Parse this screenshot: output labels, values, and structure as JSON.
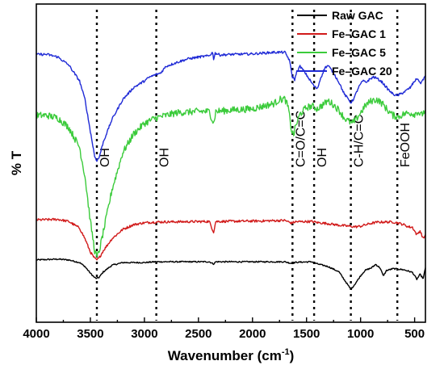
{
  "chart_data": {
    "type": "line",
    "title": "",
    "xlabel": "Wavenumber (cm⁻¹)",
    "ylabel": "% T",
    "xlim": [
      4000,
      400
    ],
    "x_ticks": [
      4000,
      3500,
      3000,
      2500,
      2000,
      1500,
      1000,
      500
    ],
    "y_ticks_shown": false,
    "grid": false,
    "legend": "top-right",
    "reference_lines": [
      {
        "x": 3440,
        "label": "OH"
      },
      {
        "x": 2890,
        "label": "OH"
      },
      {
        "x": 1630,
        "label": "C=O/C=C"
      },
      {
        "x": 1430,
        "label": "OH"
      },
      {
        "x": 1090,
        "label": "C-H/C=C"
      },
      {
        "x": 660,
        "label": "FeOOH"
      }
    ],
    "series": [
      {
        "name": "Raw GAC",
        "color": "#000000",
        "noise": 0.25,
        "points": [
          [
            4000,
            23.5
          ],
          [
            3800,
            23.8
          ],
          [
            3700,
            23.5
          ],
          [
            3600,
            22.5
          ],
          [
            3550,
            21.0
          ],
          [
            3500,
            18.5
          ],
          [
            3460,
            16.8
          ],
          [
            3440,
            16.5
          ],
          [
            3420,
            16.9
          ],
          [
            3380,
            19.0
          ],
          [
            3300,
            21.5
          ],
          [
            3200,
            22.5
          ],
          [
            3000,
            22.5
          ],
          [
            2900,
            22.8
          ],
          [
            2400,
            22.8
          ],
          [
            2360,
            22.0
          ],
          [
            2340,
            22.8
          ],
          [
            1900,
            22.8
          ],
          [
            1700,
            22.8
          ],
          [
            1640,
            22.2
          ],
          [
            1600,
            22.6
          ],
          [
            1450,
            22.8
          ],
          [
            1400,
            22.0
          ],
          [
            1300,
            21.0
          ],
          [
            1200,
            19.0
          ],
          [
            1150,
            16.0
          ],
          [
            1100,
            13.0
          ],
          [
            1085,
            12.6
          ],
          [
            1050,
            14.5
          ],
          [
            1000,
            17.5
          ],
          [
            960,
            19.5
          ],
          [
            900,
            20.5
          ],
          [
            860,
            21.8
          ],
          [
            820,
            20.5
          ],
          [
            790,
            17.5
          ],
          [
            760,
            19.5
          ],
          [
            700,
            20.2
          ],
          [
            640,
            20.0
          ],
          [
            600,
            19.8
          ],
          [
            560,
            19.3
          ],
          [
            520,
            18.8
          ],
          [
            480,
            16.2
          ],
          [
            450,
            18.0
          ],
          [
            420,
            16.5
          ],
          [
            400,
            20.5
          ]
        ]
      },
      {
        "name": "Fe–GAC 1",
        "color": "#d11a1a",
        "noise": 0.45,
        "points": [
          [
            4000,
            38.6
          ],
          [
            3800,
            38.8
          ],
          [
            3700,
            38.0
          ],
          [
            3600,
            35.5
          ],
          [
            3550,
            31.5
          ],
          [
            3500,
            26.5
          ],
          [
            3460,
            24.0
          ],
          [
            3440,
            23.5
          ],
          [
            3420,
            24.2
          ],
          [
            3380,
            27.0
          ],
          [
            3300,
            31.5
          ],
          [
            3200,
            35.0
          ],
          [
            3100,
            36.8
          ],
          [
            3000,
            37.5
          ],
          [
            2900,
            37.8
          ],
          [
            2400,
            38.0
          ],
          [
            2360,
            34.0
          ],
          [
            2340,
            38.0
          ],
          [
            1900,
            38.2
          ],
          [
            1700,
            38.4
          ],
          [
            1640,
            37.4
          ],
          [
            1600,
            37.9
          ],
          [
            1450,
            38.0
          ],
          [
            1400,
            37.6
          ],
          [
            1300,
            37.2
          ],
          [
            1200,
            36.6
          ],
          [
            1100,
            36.2
          ],
          [
            1050,
            36.0
          ],
          [
            1000,
            36.2
          ],
          [
            950,
            36.8
          ],
          [
            900,
            37.3
          ],
          [
            850,
            37.7
          ],
          [
            800,
            37.8
          ],
          [
            700,
            37.8
          ],
          [
            650,
            37.4
          ],
          [
            600,
            36.8
          ],
          [
            560,
            36.0
          ],
          [
            520,
            35.8
          ],
          [
            480,
            33.0
          ],
          [
            450,
            34.5
          ],
          [
            420,
            31.5
          ],
          [
            400,
            33.0
          ]
        ]
      },
      {
        "name": "Fe–GAC 5",
        "color": "#3bcb3b",
        "noise": 1.3,
        "points": [
          [
            4000,
            78.0
          ],
          [
            3900,
            78.0
          ],
          [
            3800,
            77.0
          ],
          [
            3700,
            73.5
          ],
          [
            3600,
            66.0
          ],
          [
            3550,
            55.0
          ],
          [
            3500,
            38.0
          ],
          [
            3460,
            27.0
          ],
          [
            3440,
            24.5
          ],
          [
            3420,
            26.5
          ],
          [
            3380,
            34.0
          ],
          [
            3300,
            50.0
          ],
          [
            3200,
            64.0
          ],
          [
            3100,
            71.0
          ],
          [
            3000,
            75.0
          ],
          [
            2900,
            77.0
          ],
          [
            2700,
            79.0
          ],
          [
            2500,
            79.5
          ],
          [
            2400,
            79.5
          ],
          [
            2360,
            75.0
          ],
          [
            2340,
            79.5
          ],
          [
            2200,
            80.0
          ],
          [
            2000,
            80.5
          ],
          [
            1900,
            81.5
          ],
          [
            1800,
            82.5
          ],
          [
            1750,
            84.0
          ],
          [
            1700,
            84.2
          ],
          [
            1670,
            81.0
          ],
          [
            1640,
            72.5
          ],
          [
            1620,
            70.5
          ],
          [
            1600,
            74.0
          ],
          [
            1560,
            78.5
          ],
          [
            1500,
            81.0
          ],
          [
            1450,
            81.5
          ],
          [
            1400,
            80.5
          ],
          [
            1300,
            83.5
          ],
          [
            1250,
            82.0
          ],
          [
            1200,
            80.0
          ],
          [
            1150,
            77.0
          ],
          [
            1100,
            75.5
          ],
          [
            1080,
            75.0
          ],
          [
            1050,
            76.0
          ],
          [
            1000,
            79.0
          ],
          [
            950,
            82.0
          ],
          [
            900,
            83.5
          ],
          [
            850,
            84.0
          ],
          [
            800,
            82.5
          ],
          [
            750,
            80.0
          ],
          [
            700,
            78.0
          ],
          [
            650,
            77.5
          ],
          [
            600,
            78.5
          ],
          [
            550,
            79.0
          ],
          [
            500,
            78.5
          ],
          [
            470,
            79.5
          ],
          [
            440,
            78.0
          ],
          [
            400,
            80.0
          ]
        ]
      },
      {
        "name": "Fe–GAC 20",
        "color": "#1f2ad6",
        "noise": 0.45,
        "points": [
          [
            4000,
            101.0
          ],
          [
            3900,
            101.0
          ],
          [
            3800,
            100.0
          ],
          [
            3700,
            97.0
          ],
          [
            3600,
            91.0
          ],
          [
            3550,
            84.0
          ],
          [
            3500,
            72.0
          ],
          [
            3460,
            62.5
          ],
          [
            3440,
            61.0
          ],
          [
            3420,
            62.0
          ],
          [
            3380,
            68.0
          ],
          [
            3300,
            76.5
          ],
          [
            3200,
            84.0
          ],
          [
            3100,
            88.5
          ],
          [
            3000,
            91.0
          ],
          [
            2950,
            92.5
          ],
          [
            2900,
            93.3
          ],
          [
            2850,
            94.0
          ],
          [
            2800,
            96.5
          ],
          [
            2700,
            98.0
          ],
          [
            2600,
            99.3
          ],
          [
            2500,
            100.0
          ],
          [
            2400,
            100.5
          ],
          [
            2370,
            101.8
          ],
          [
            2360,
            99.3
          ],
          [
            2345,
            101.5
          ],
          [
            2300,
            100.8
          ],
          [
            2200,
            101.0
          ],
          [
            2000,
            101.2
          ],
          [
            1900,
            101.5
          ],
          [
            1800,
            101.8
          ],
          [
            1700,
            101.8
          ],
          [
            1660,
            99.0
          ],
          [
            1630,
            92.5
          ],
          [
            1610,
            91.5
          ],
          [
            1590,
            94.5
          ],
          [
            1560,
            96.5
          ],
          [
            1520,
            94.5
          ],
          [
            1480,
            92.0
          ],
          [
            1430,
            89.0
          ],
          [
            1400,
            88.0
          ],
          [
            1370,
            92.0
          ],
          [
            1330,
            96.0
          ],
          [
            1300,
            96.8
          ],
          [
            1250,
            94.0
          ],
          [
            1200,
            90.5
          ],
          [
            1150,
            86.0
          ],
          [
            1110,
            84.0
          ],
          [
            1090,
            82.8
          ],
          [
            1060,
            84.5
          ],
          [
            1020,
            88.5
          ],
          [
            980,
            91.0
          ],
          [
            950,
            90.5
          ],
          [
            920,
            91.5
          ],
          [
            880,
            92.5
          ],
          [
            850,
            92.0
          ],
          [
            800,
            90.5
          ],
          [
            750,
            88.0
          ],
          [
            700,
            86.0
          ],
          [
            660,
            85.5
          ],
          [
            620,
            86.3
          ],
          [
            580,
            87.3
          ],
          [
            540,
            88.5
          ],
          [
            500,
            91.0
          ],
          [
            470,
            92.0
          ],
          [
            450,
            90.0
          ],
          [
            430,
            91.0
          ],
          [
            400,
            93.0
          ]
        ]
      }
    ]
  }
}
